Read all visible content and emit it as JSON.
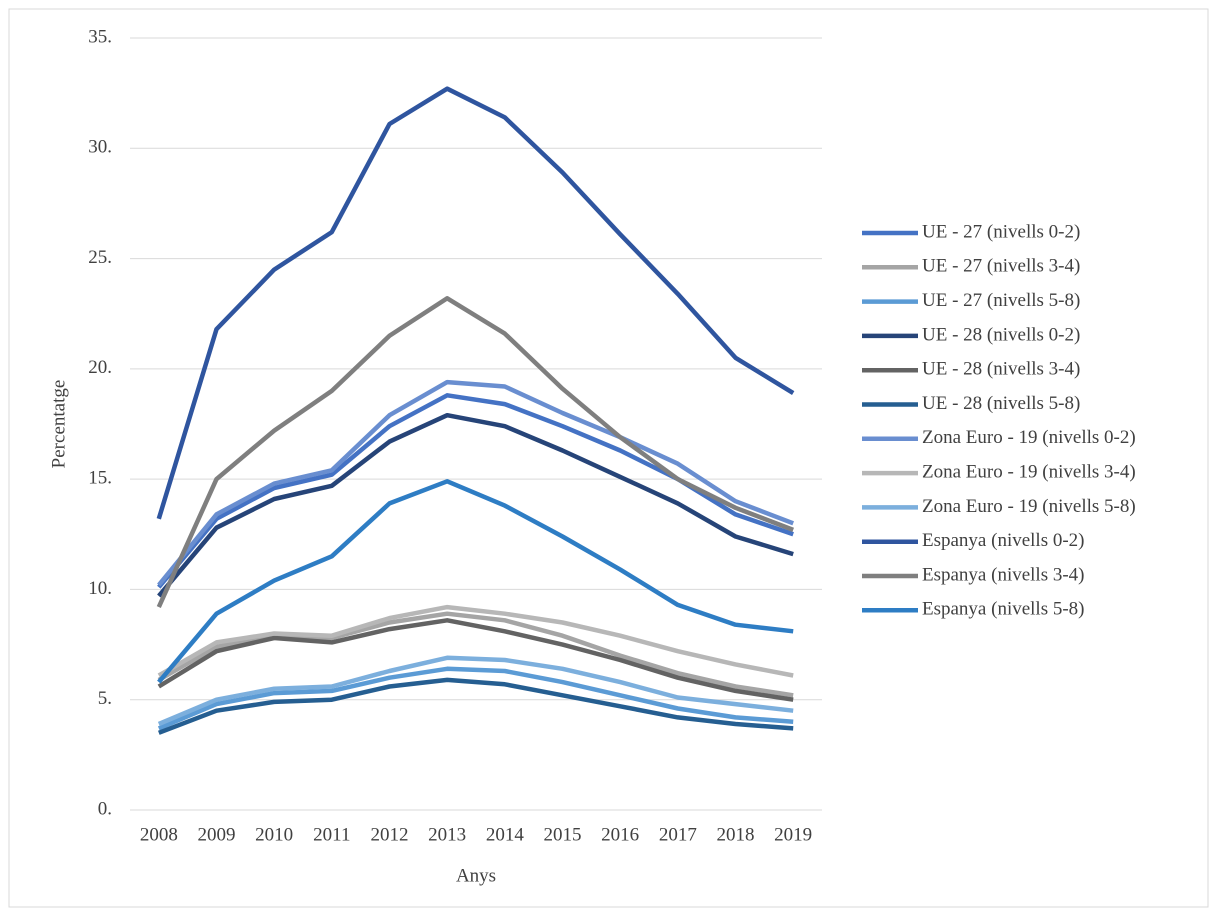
{
  "chart_data": {
    "type": "line",
    "x_label": "Anys",
    "y_label": "Percentatge",
    "categories": [
      "2008",
      "2009",
      "2010",
      "2011",
      "2012",
      "2013",
      "2014",
      "2015",
      "2016",
      "2017",
      "2018",
      "2019"
    ],
    "ylim": [
      0,
      35
    ],
    "yticks": [
      {
        "value": 0,
        "label": "0."
      },
      {
        "value": 5,
        "label": "5."
      },
      {
        "value": 10,
        "label": "10."
      },
      {
        "value": 15,
        "label": "15."
      },
      {
        "value": 20,
        "label": "20."
      },
      {
        "value": 25,
        "label": "25."
      },
      {
        "value": 30,
        "label": "30."
      },
      {
        "value": 35,
        "label": "35."
      }
    ],
    "grid": true,
    "legend": "right",
    "series": [
      {
        "name": "UE - 27 (nivells 0-2)",
        "color": "#4472c4",
        "values": [
          10.1,
          13.2,
          14.6,
          15.2,
          17.4,
          18.8,
          18.4,
          17.4,
          16.3,
          15.0,
          13.4,
          12.5
        ]
      },
      {
        "name": "UE - 27 (nivells 3-4)",
        "color": "#a5a5a5",
        "values": [
          5.9,
          7.4,
          7.9,
          7.8,
          8.5,
          8.9,
          8.6,
          7.9,
          7.0,
          6.2,
          5.6,
          5.2
        ]
      },
      {
        "name": "UE - 27 (nivells 5-8)",
        "color": "#5b9bd5",
        "values": [
          3.7,
          4.8,
          5.3,
          5.4,
          6.0,
          6.4,
          6.3,
          5.8,
          5.2,
          4.6,
          4.2,
          4.0
        ]
      },
      {
        "name": "UE - 28 (nivells 0-2)",
        "color": "#264478",
        "values": [
          9.7,
          12.8,
          14.1,
          14.7,
          16.7,
          17.9,
          17.4,
          16.3,
          15.1,
          13.9,
          12.4,
          11.6
        ]
      },
      {
        "name": "UE - 28 (nivells 3-4)",
        "color": "#636363",
        "values": [
          5.6,
          7.2,
          7.8,
          7.6,
          8.2,
          8.6,
          8.1,
          7.5,
          6.8,
          6.0,
          5.4,
          5.0
        ]
      },
      {
        "name": "UE - 28 (nivells 5-8)",
        "color": "#255e91",
        "values": [
          3.5,
          4.5,
          4.9,
          5.0,
          5.6,
          5.9,
          5.7,
          5.2,
          4.7,
          4.2,
          3.9,
          3.7
        ]
      },
      {
        "name": "Zona Euro - 19 (nivells 0-2)",
        "color": "#698ed0",
        "values": [
          10.2,
          13.4,
          14.8,
          15.4,
          17.9,
          19.4,
          19.2,
          18.0,
          16.9,
          15.7,
          14.0,
          13.0
        ]
      },
      {
        "name": "Zona Euro - 19 (nivells 3-4)",
        "color": "#b7b7b7",
        "values": [
          6.1,
          7.6,
          8.0,
          7.9,
          8.7,
          9.2,
          8.9,
          8.5,
          7.9,
          7.2,
          6.6,
          6.1
        ]
      },
      {
        "name": "Zona Euro - 19 (nivells 5-8)",
        "color": "#7cafdd",
        "values": [
          3.9,
          5.0,
          5.5,
          5.6,
          6.3,
          6.9,
          6.8,
          6.4,
          5.8,
          5.1,
          4.8,
          4.5
        ]
      },
      {
        "name": "Espanya (nivells 0-2)",
        "color": "#2f559f",
        "values": [
          13.2,
          21.8,
          24.5,
          26.2,
          31.1,
          32.7,
          31.4,
          28.9,
          26.1,
          23.4,
          20.5,
          18.9
        ]
      },
      {
        "name": "Espanya (nivells 3-4)",
        "color": "#7f7f7f",
        "values": [
          9.2,
          15.0,
          17.2,
          19.0,
          21.5,
          23.2,
          21.6,
          19.1,
          16.9,
          15.0,
          13.7,
          12.7
        ]
      },
      {
        "name": "Espanya (nivells 5-8)",
        "color": "#2e7dc4",
        "values": [
          5.8,
          8.9,
          10.4,
          11.5,
          13.9,
          14.9,
          13.8,
          12.4,
          10.9,
          9.3,
          8.4,
          8.1
        ]
      }
    ]
  }
}
